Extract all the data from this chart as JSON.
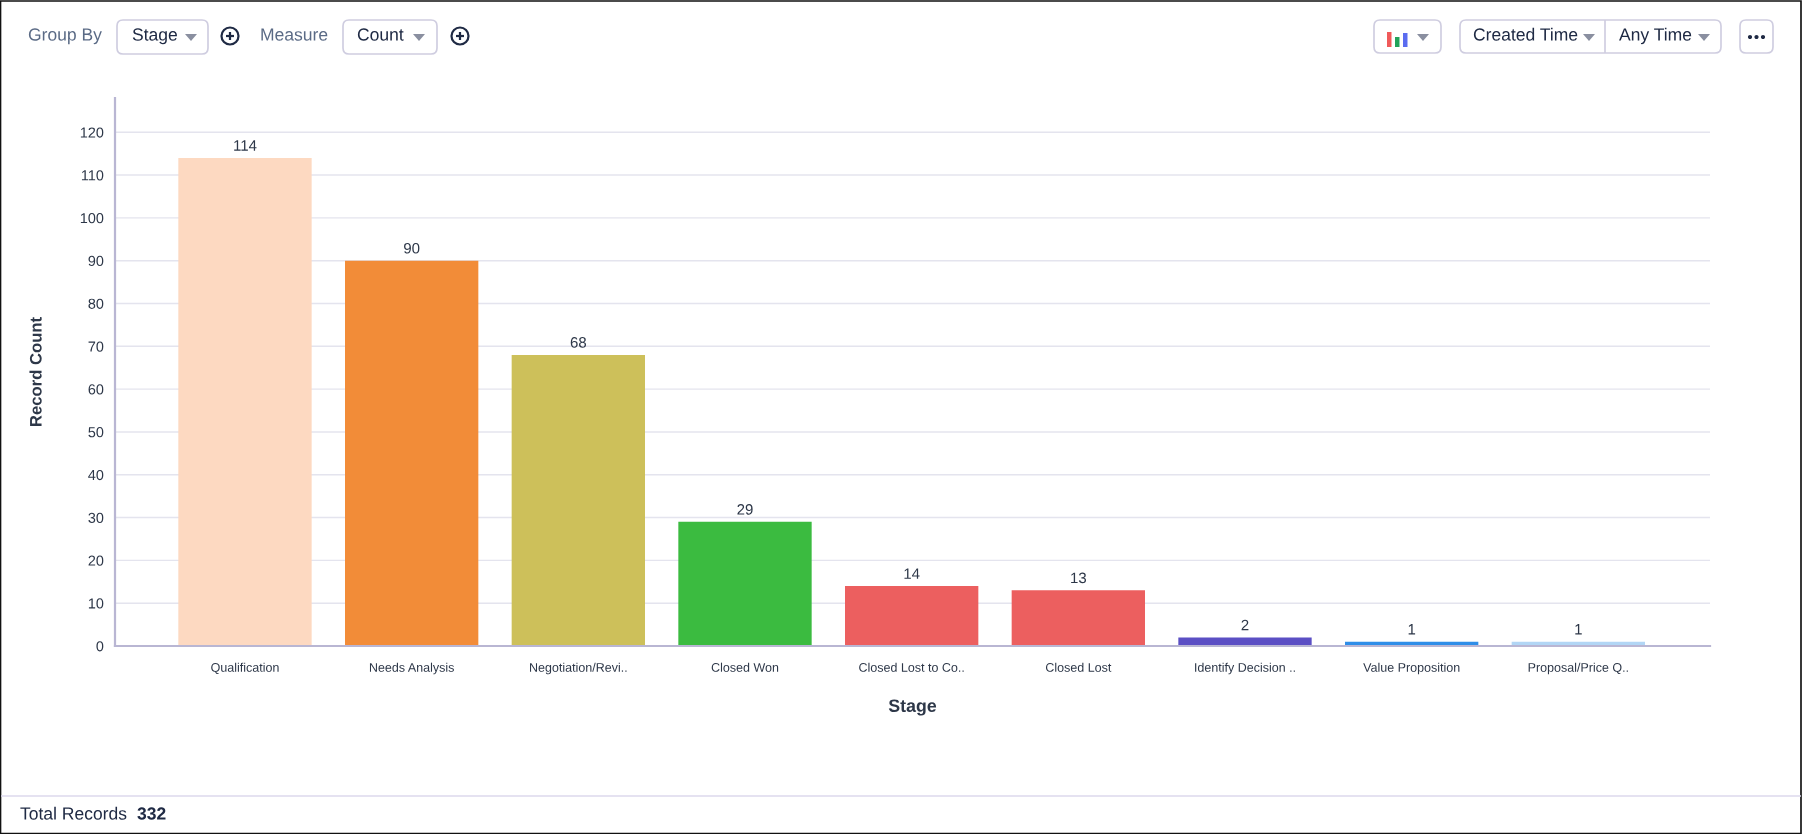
{
  "chart_data": {
    "type": "bar",
    "xlabel": "Stage",
    "ylabel": "Record Count",
    "categories": [
      "Qualification",
      "Needs Analysis",
      "Negotiation/Revi..",
      "Closed Won",
      "Closed Lost to Co..",
      "Closed Lost",
      "Identify Decision ..",
      "Value Proposition",
      "Proposal/Price Q.."
    ],
    "values": [
      114,
      90,
      68,
      29,
      14,
      13,
      2,
      1,
      1
    ],
    "colors": [
      "#fdd9c1",
      "#f28c38",
      "#cdc05a",
      "#3bbb40",
      "#ec5f5f",
      "#ec5f5f",
      "#5b4fc4",
      "#2f8ee8",
      "#b2d6f5"
    ],
    "ylim": [
      0,
      128
    ],
    "yticks": [
      0,
      10,
      20,
      30,
      40,
      50,
      60,
      70,
      80,
      90,
      100,
      110,
      120
    ],
    "grid": "y",
    "data_labels": true,
    "annotations": [
      "Group By",
      "Stage",
      "Measure",
      "Count",
      "Created Time",
      "Any Time",
      "Total Records",
      "332"
    ]
  }
}
